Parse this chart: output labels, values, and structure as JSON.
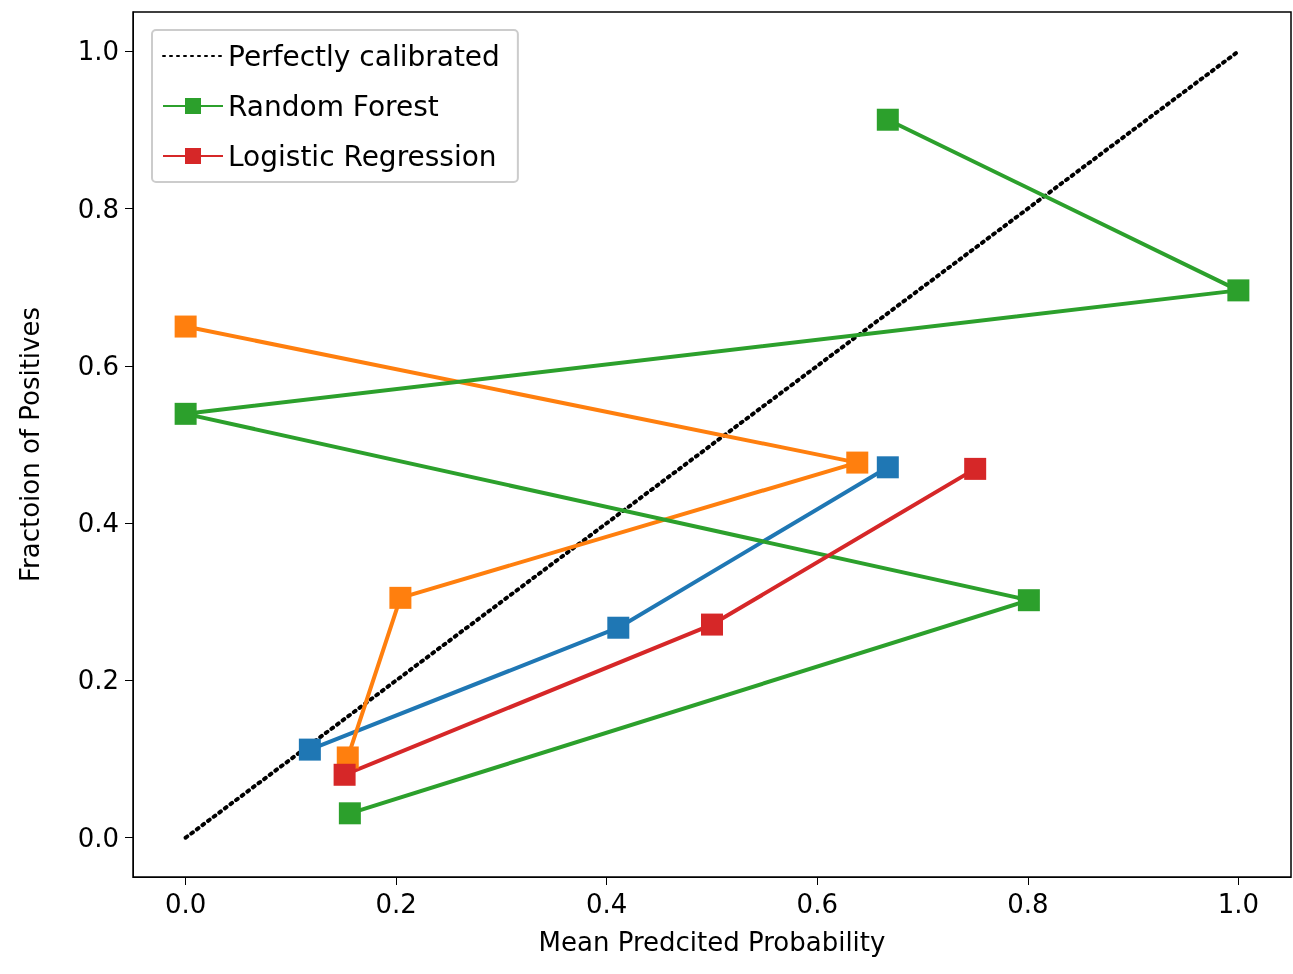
{
  "chart_data": {
    "type": "line",
    "xlabel": "Mean Predcited Probability",
    "ylabel": "Fractoion of Positives",
    "xlim": [
      -0.05,
      1.05
    ],
    "ylim": [
      -0.05,
      1.05
    ],
    "xticks": [
      {
        "value": 0,
        "label": "0.0"
      },
      0.2,
      0.4,
      0.6,
      0.8,
      {
        "value": 1,
        "label": "1.0"
      }
    ],
    "yticks": [
      {
        "value": 0,
        "label": "0.0"
      },
      0.2,
      0.4,
      0.6,
      0.8,
      {
        "value": 1,
        "label": "1.0"
      }
    ],
    "grid": false,
    "legend": "top left",
    "marker": "square",
    "line_style": "solid",
    "series": [
      {
        "name": "Perfectly calibrated",
        "color": "#000000",
        "line_style": "dotted",
        "marker": "none",
        "x": [
          0,
          1
        ],
        "values": [
          0,
          1
        ]
      },
      {
        "color": "#1f77b4",
        "x": [
          0.118,
          0.411,
          0.667
        ],
        "values": [
          0.112,
          0.267,
          0.471
        ]
      },
      {
        "color": "#ff7f0e",
        "x": [
          0,
          0.638,
          0.204,
          0.154
        ],
        "values": [
          0.65,
          0.477,
          0.305,
          0.102
        ]
      },
      {
        "name": "Random Forest",
        "color": "#2ca02c",
        "x": [
          0.156,
          0.801,
          0,
          1.0,
          0.667
        ],
        "values": [
          0.031,
          0.302,
          0.539,
          0.696,
          0.913
        ]
      },
      {
        "name": "Logistic Regression",
        "color": "#d62728",
        "x": [
          0.151,
          0.5,
          0.75
        ],
        "values": [
          0.08,
          0.271,
          0.469
        ]
      }
    ]
  }
}
